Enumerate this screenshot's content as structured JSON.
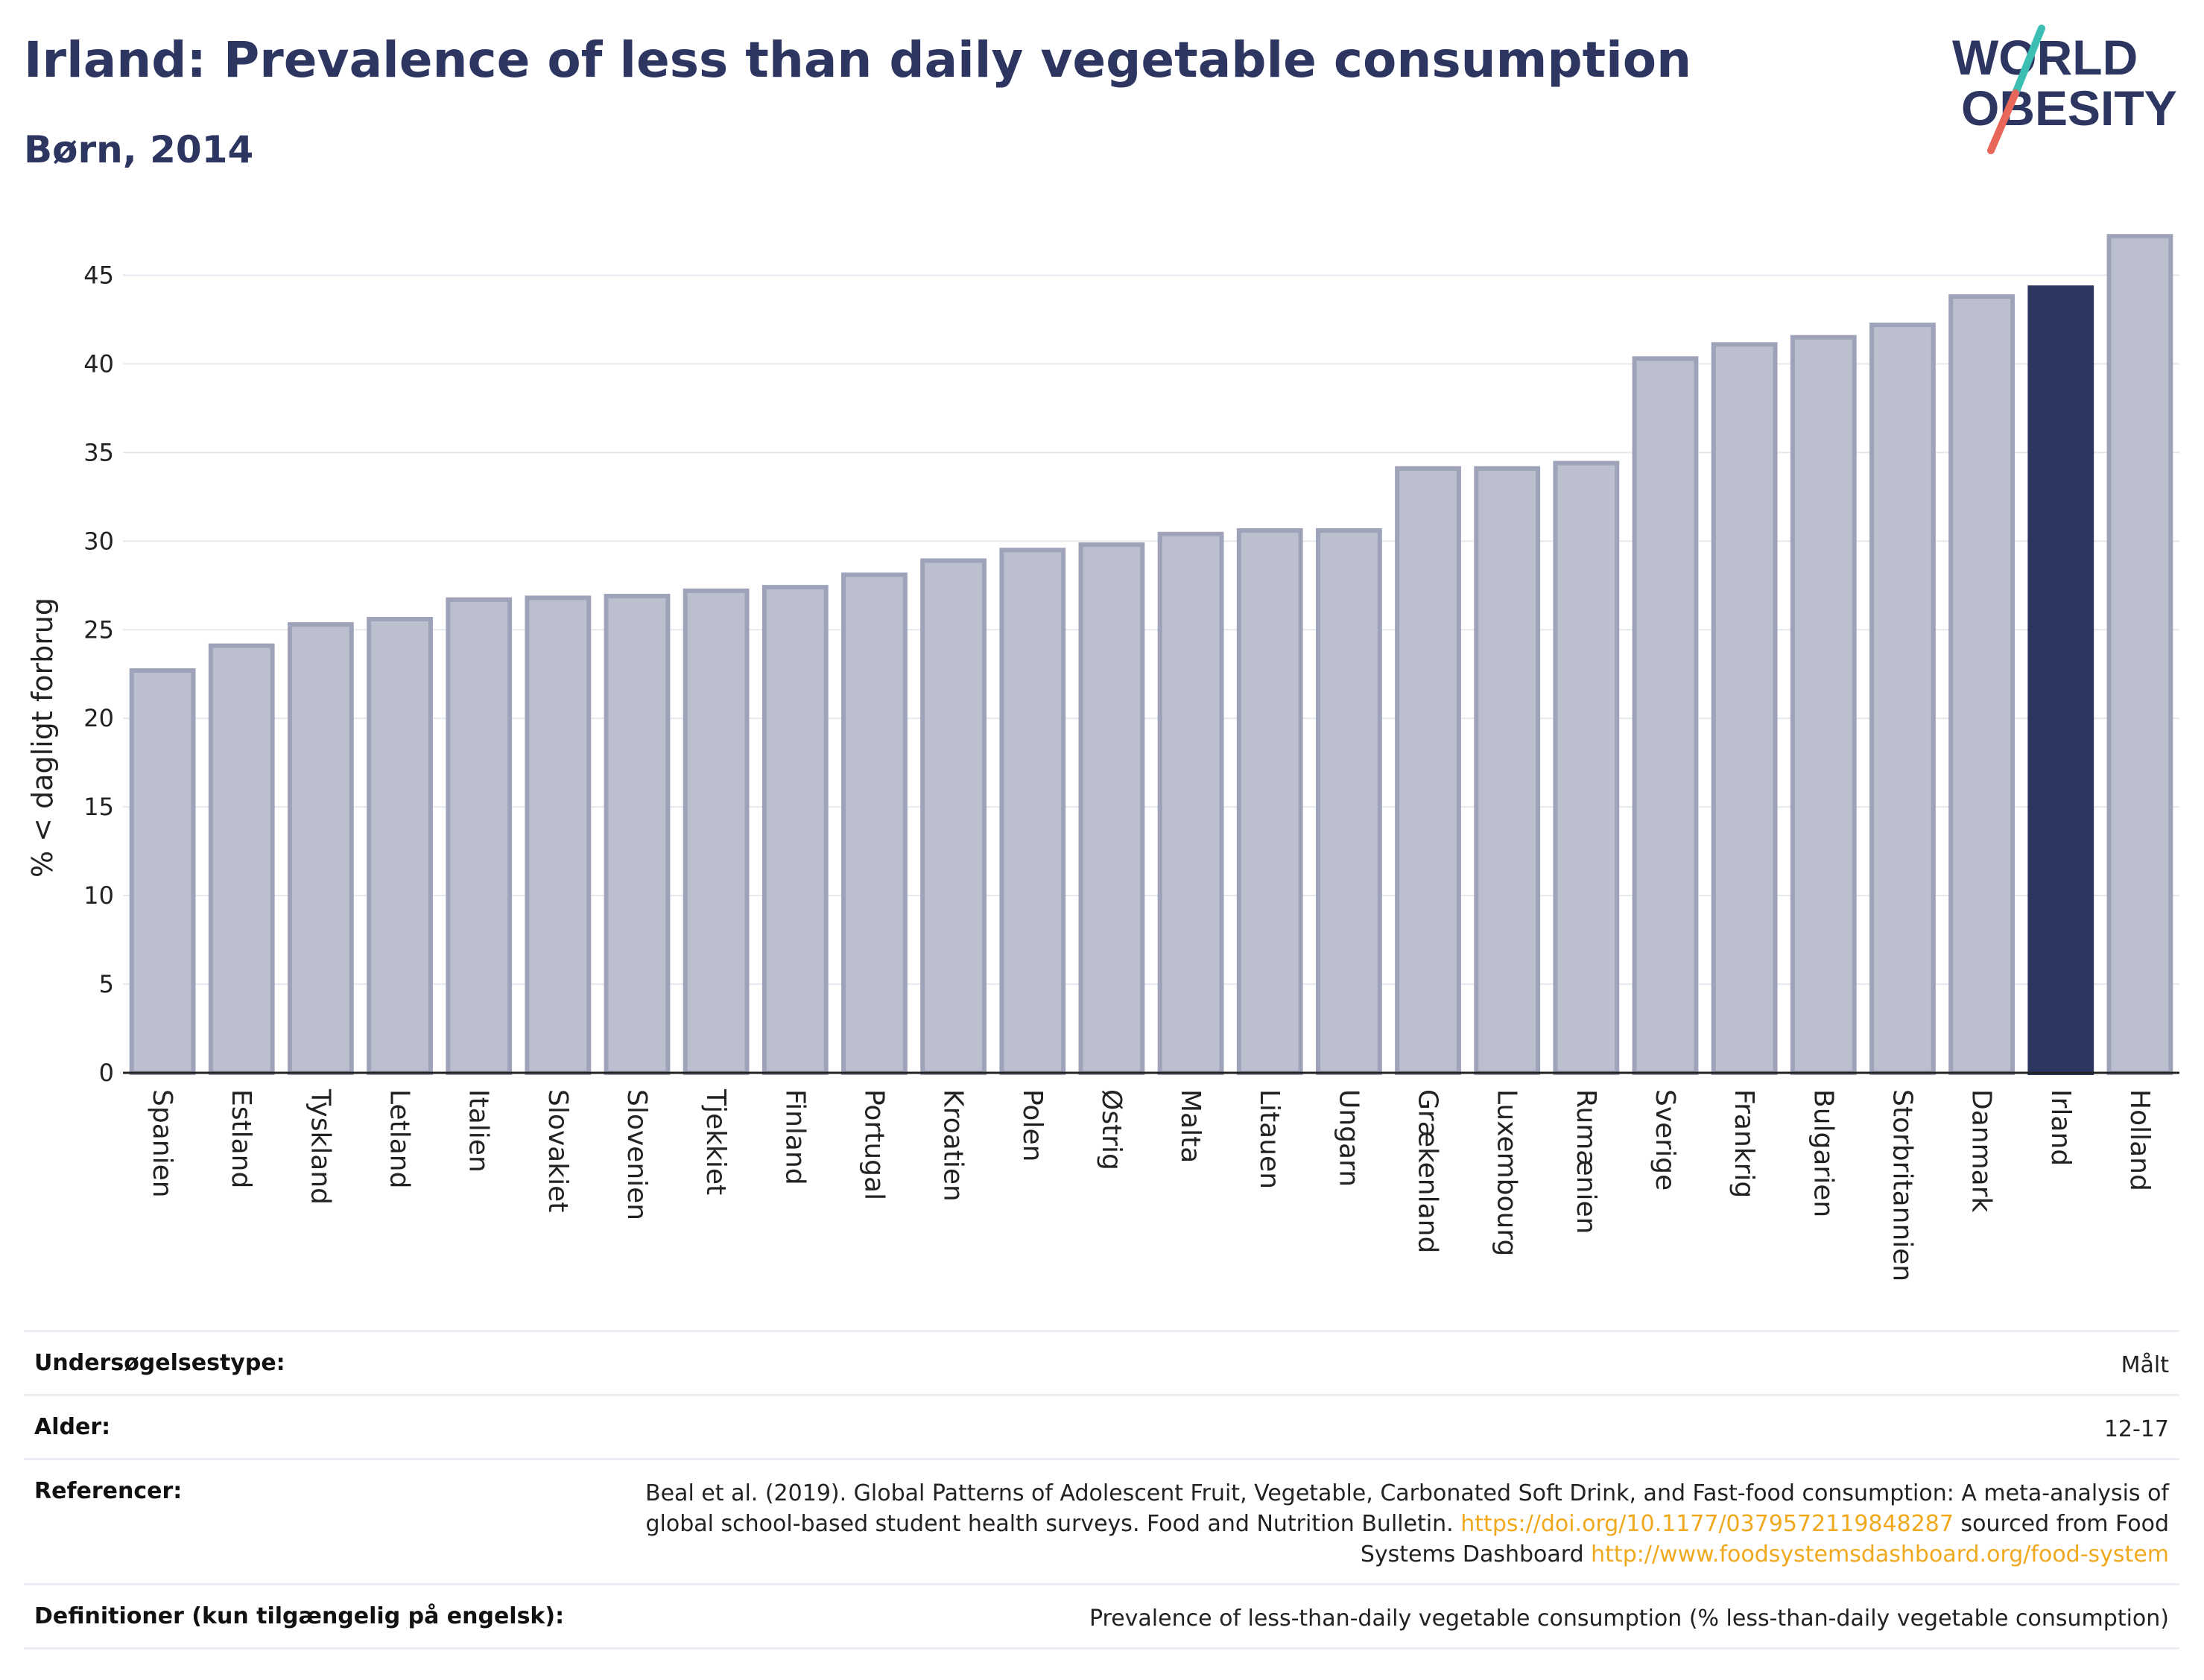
{
  "header": {
    "title": "Irland: Prevalence of less than daily vegetable consumption",
    "subtitle": "Børn, 2014",
    "logo_line1": "WORLD",
    "logo_line2": "OBESITY"
  },
  "colors": {
    "bar": "#bcbfcd",
    "bar_border": "#9ea3ba",
    "highlight": "#2d3561",
    "title": "#2d3561",
    "logo_teal": "#3cbfb2",
    "logo_coral": "#e8665a",
    "link": "#f0a81c"
  },
  "chart_data": {
    "type": "bar",
    "ylabel": "% < dagligt forbrug",
    "xlabel": "",
    "ylim": [
      0,
      47.5
    ],
    "yticks": [
      0,
      5,
      10,
      15,
      20,
      25,
      30,
      35,
      40,
      45
    ],
    "grid": true,
    "highlight_category": "Irland",
    "categories": [
      "Spanien",
      "Estland",
      "Tyskland",
      "Letland",
      "Italien",
      "Slovakiet",
      "Slovenien",
      "Tjekkiet",
      "Finland",
      "Portugal",
      "Kroatien",
      "Polen",
      "Østrig",
      "Malta",
      "Litauen",
      "Ungarn",
      "Grækenland",
      "Luxembourg",
      "Rumænien",
      "Sverige",
      "Frankrig",
      "Bulgarien",
      "Storbritannien",
      "Danmark",
      "Irland",
      "Holland"
    ],
    "values": [
      22.7,
      24.1,
      25.3,
      25.6,
      26.7,
      26.8,
      26.9,
      27.2,
      27.4,
      28.1,
      28.9,
      29.5,
      29.8,
      30.4,
      30.6,
      30.6,
      34.1,
      34.1,
      34.4,
      40.3,
      41.1,
      41.5,
      42.2,
      43.8,
      44.3,
      47.2
    ]
  },
  "info": {
    "rows": [
      {
        "label": "Undersøgelsestype:",
        "value": "Målt"
      },
      {
        "label": "Alder:",
        "value": "12-17"
      },
      {
        "label": "Referencer:",
        "value": "Beal et al. (2019). Global Patterns of Adolescent Fruit, Vegetable, Carbonated Soft Drink, and Fast-food consumption: A meta-analysis of global school-based student health surveys. Food and Nutrition Bulletin.",
        "link1": "https://doi.org/10.1177/0379572119848287",
        "mid": "sourced from Food Systems Dashboard",
        "link2": "http://www.foodsystemsdashboard.org/food-system"
      },
      {
        "label": "Definitioner (kun tilgængelig på engelsk):",
        "value": "Prevalence of less-than-daily vegetable consumption (% less-than-daily vegetable consumption)"
      }
    ]
  }
}
